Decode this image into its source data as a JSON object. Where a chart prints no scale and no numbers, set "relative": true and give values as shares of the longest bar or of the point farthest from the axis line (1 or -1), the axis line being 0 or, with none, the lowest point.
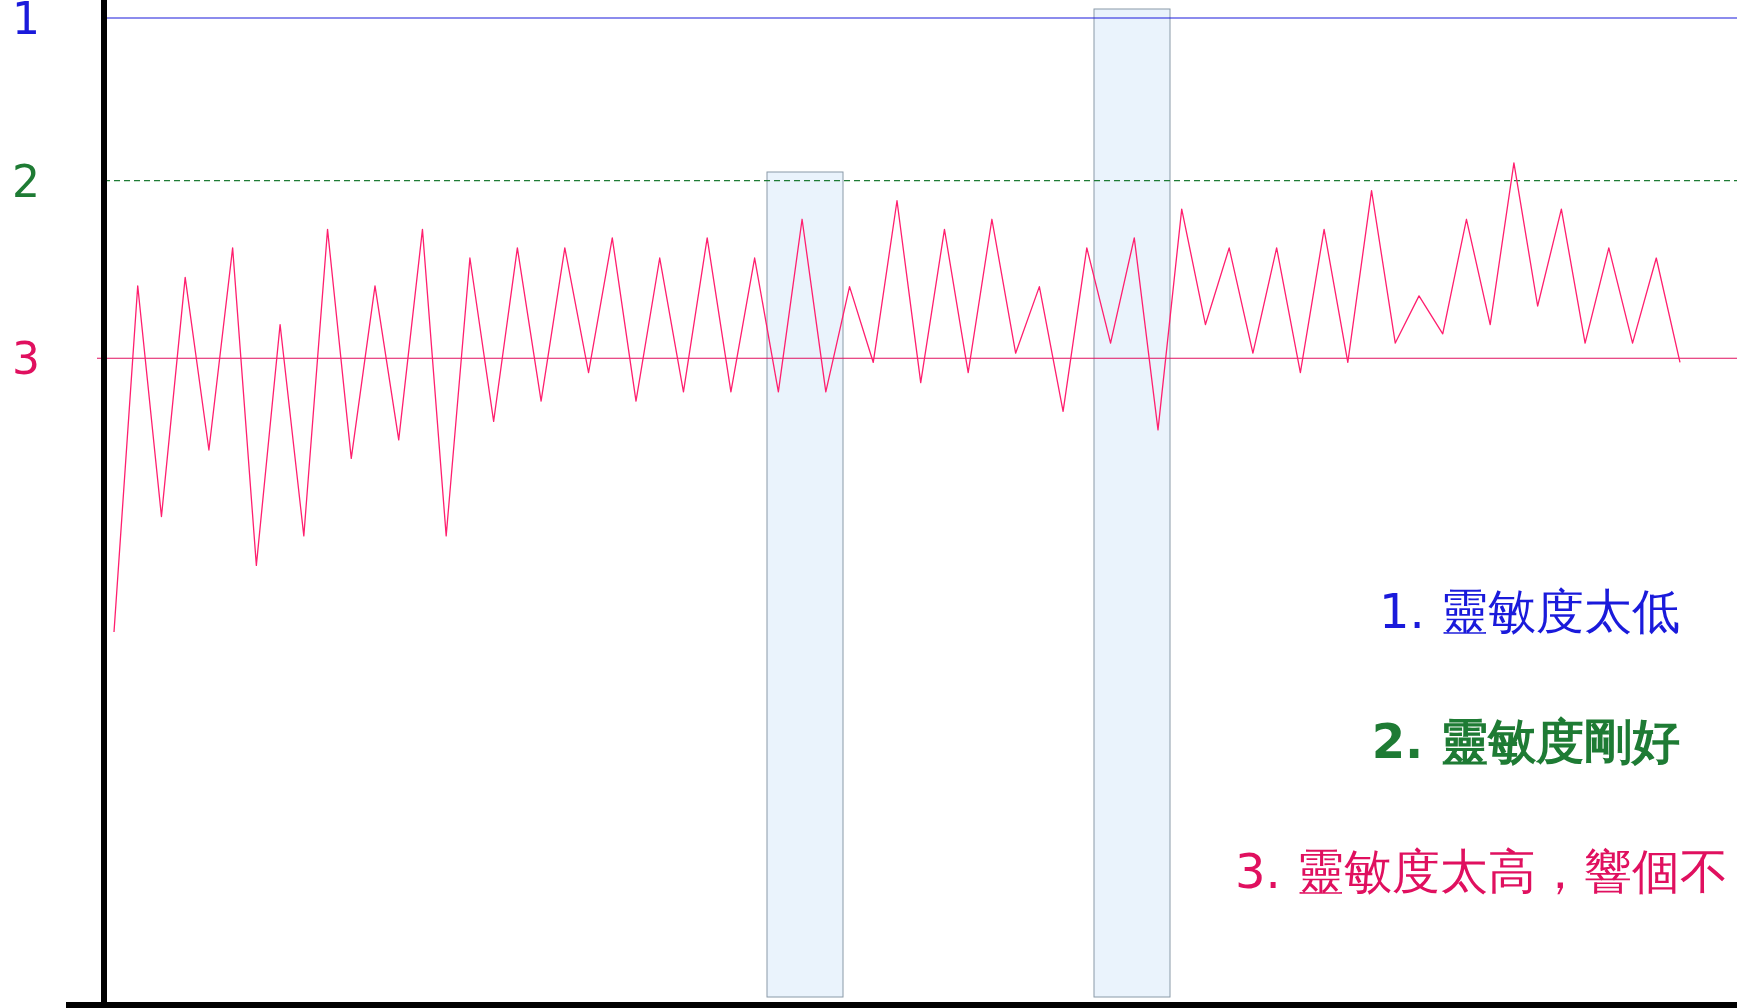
{
  "chart_data": {
    "type": "line",
    "relative": true,
    "categories": [
      null,
      null,
      null,
      null,
      null,
      null,
      null,
      null,
      null,
      null,
      null,
      null,
      null,
      null,
      null,
      null,
      null,
      null,
      null,
      null,
      null,
      null,
      null,
      null,
      null,
      null,
      null,
      null,
      null,
      null,
      null,
      null,
      null,
      null,
      null,
      null,
      null,
      null,
      null,
      null,
      null,
      null,
      null,
      null,
      null,
      null,
      null,
      null,
      null,
      null,
      null,
      null,
      null,
      null,
      null,
      null,
      null,
      null,
      null,
      null,
      null,
      null,
      null,
      null,
      null,
      null,
      null
    ],
    "series": [
      {
        "color": "#ff1f6e",
        "values": [
          0.443,
          0.854,
          0.58,
          0.864,
          0.659,
          0.899,
          0.522,
          0.808,
          0.557,
          0.921,
          0.649,
          0.854,
          0.671,
          0.921,
          0.557,
          0.887,
          0.693,
          0.899,
          0.717,
          0.899,
          0.751,
          0.911,
          0.717,
          0.887,
          0.728,
          0.911,
          0.728,
          0.887,
          0.728,
          0.933,
          0.728,
          0.853,
          0.763,
          0.955,
          0.739,
          0.921,
          0.751,
          0.933,
          0.774,
          0.853,
          0.705,
          0.899,
          0.786,
          0.911,
          0.683,
          0.945,
          0.808,
          0.899,
          0.774,
          0.899,
          0.751,
          0.921,
          0.763,
          0.967,
          0.786,
          0.842,
          0.797,
          0.933,
          0.808,
          1,
          0.83,
          0.945,
          0.786,
          0.899,
          0.786,
          0.887,
          0.763
        ]
      }
    ],
    "ref_lines": [
      {
        "axis": "y",
        "value": 1.172,
        "color": "#1a1adb",
        "line_style": "solid"
      },
      {
        "axis": "y",
        "value": 0.979,
        "color": "#1e7b34",
        "line_style": "dashed"
      },
      {
        "axis": "y",
        "value": 0.768,
        "color": "#e0105f",
        "line_style": "solid"
      }
    ],
    "annotations": [
      "1. 靈敏度太低",
      "2. 靈敏度剛好",
      "3. 靈敏度太高，響個不",
      "1",
      "2",
      "3"
    ],
    "line_style": "solid",
    "marker": "none"
  }
}
